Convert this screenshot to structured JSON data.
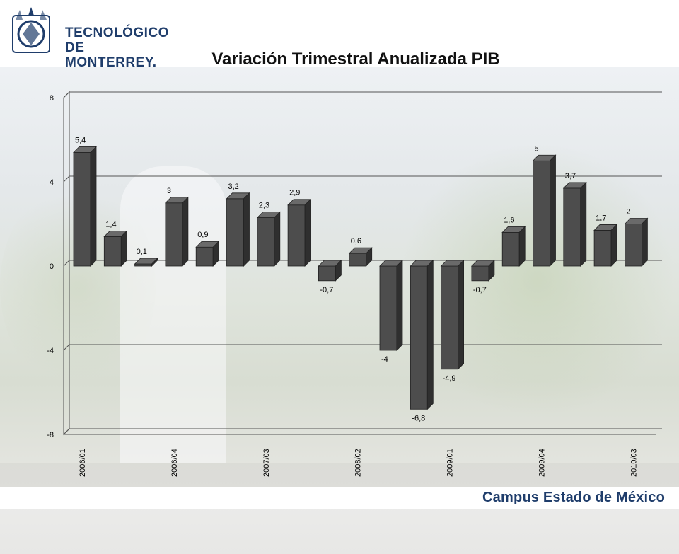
{
  "header": {
    "logo_text": "TECNOLÓGICO\nDE MONTERREY."
  },
  "footer": {
    "campus": "Campus Estado de México"
  },
  "chart_data": {
    "type": "bar",
    "title": "Variación Trimestral Anualizada PIB",
    "ylim": [
      -8,
      8
    ],
    "yticks": [
      "8",
      "4",
      "0",
      "-4",
      "-8"
    ],
    "ytick_values": [
      8,
      4,
      0,
      -4,
      -8
    ],
    "grid": true,
    "bar_color": "#505050",
    "values": [
      5.4,
      1.4,
      0.1,
      3,
      0.9,
      3.2,
      2.3,
      2.9,
      -0.7,
      0.6,
      -4,
      -6.8,
      -4.9,
      -0.7,
      1.6,
      5,
      3.7,
      1.7,
      2
    ],
    "value_labels": [
      "5,4",
      "1,4",
      "0,1",
      "3",
      "0,9",
      "3,2",
      "2,3",
      "2,9",
      "-0,7",
      "0,6",
      "-4",
      "-6,8",
      "-4,9",
      "-0,7",
      "1,6",
      "5",
      "3,7",
      "1,7",
      "2"
    ],
    "xtick_labels": [
      {
        "index": 0,
        "label": "2006/01"
      },
      {
        "index": 3,
        "label": "2006/04"
      },
      {
        "index": 6,
        "label": "2007/03"
      },
      {
        "index": 9,
        "label": "2008/02"
      },
      {
        "index": 12,
        "label": "2009/01"
      },
      {
        "index": 15,
        "label": "2009/04"
      },
      {
        "index": 18,
        "label": "2010/03"
      }
    ]
  }
}
